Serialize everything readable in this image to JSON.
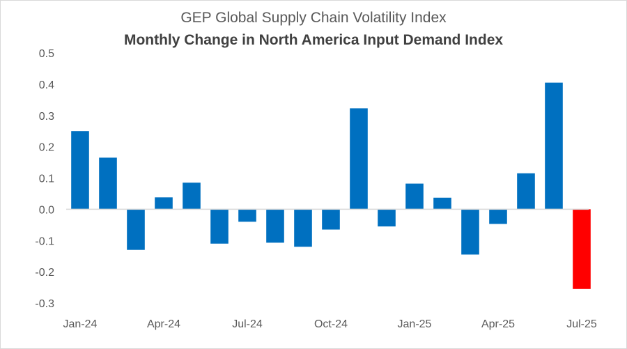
{
  "chart_data": {
    "type": "bar",
    "title": "GEP Global Supply Chain Volatility Index",
    "subtitle": "Monthly Change in North America Input Demand Index",
    "xlabel": "",
    "ylabel": "",
    "ylim": [
      -0.3,
      0.5
    ],
    "yticks": [
      0.5,
      0.4,
      0.3,
      0.2,
      0.1,
      0.0,
      -0.1,
      -0.2,
      -0.3
    ],
    "ytick_labels": [
      "0.5",
      "0.4",
      "0.3",
      "0.2",
      "0.1",
      "0.0",
      "-0.1",
      "-0.2",
      "-0.3"
    ],
    "categories": [
      "Jan-24",
      "Feb-24",
      "Mar-24",
      "Apr-24",
      "May-24",
      "Jun-24",
      "Jul-24",
      "Aug-24",
      "Sep-24",
      "Oct-24",
      "Nov-24",
      "Dec-24",
      "Jan-25",
      "Feb-25",
      "Mar-25",
      "Apr-25",
      "May-25",
      "Jun-25",
      "Jul-25"
    ],
    "xtick_labels": [
      "Jan-24",
      "Apr-24",
      "Jul-24",
      "Oct-24",
      "Jan-25",
      "Apr-25",
      "Jul-25"
    ],
    "values": [
      0.25,
      0.165,
      -0.13,
      0.038,
      0.085,
      -0.11,
      -0.04,
      -0.107,
      -0.12,
      -0.065,
      0.323,
      -0.055,
      0.082,
      0.037,
      -0.145,
      -0.047,
      0.115,
      0.405,
      -0.255
    ],
    "grid": false,
    "colors": {
      "default": "#0070c0",
      "highlight": "#ff0000",
      "axis": "#d9d9d9",
      "text": "#595959"
    },
    "highlight_index": 18
  }
}
